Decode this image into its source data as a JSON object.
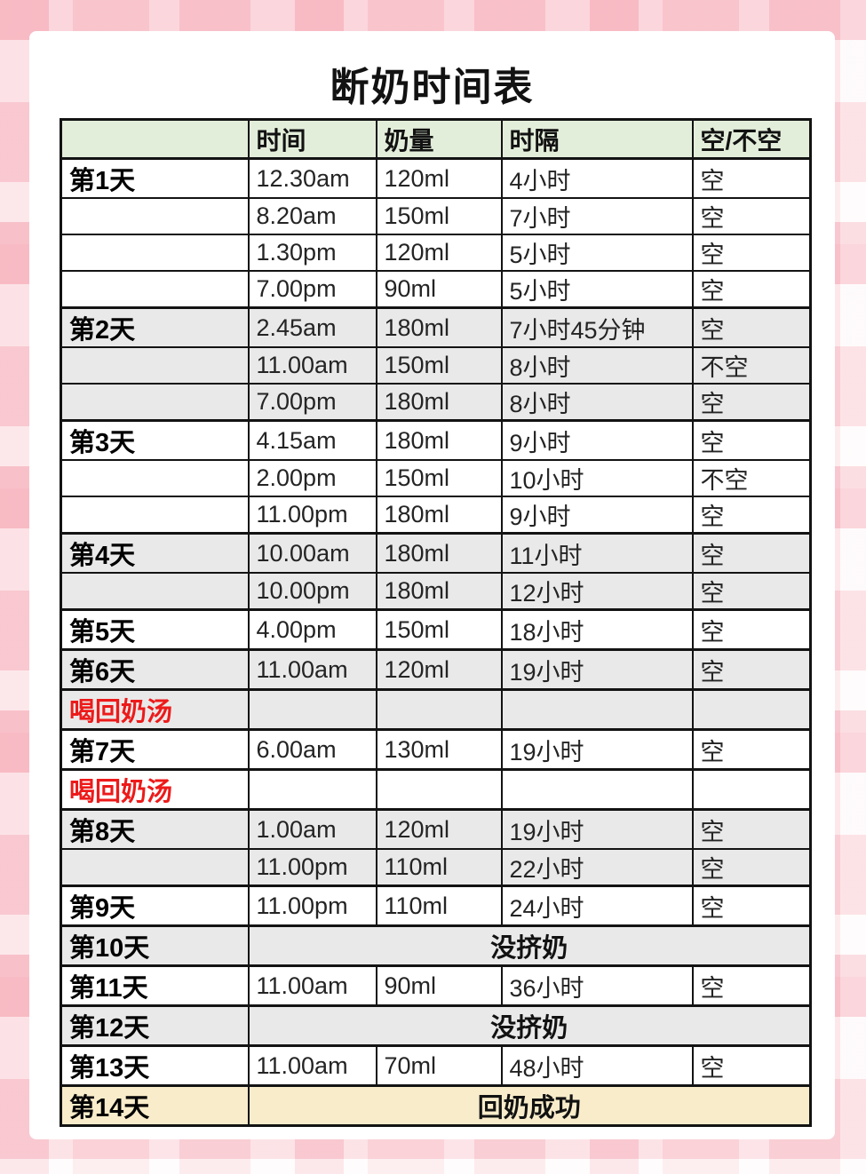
{
  "page_title": "断奶时间表",
  "colors": {
    "header_bg": "#e3eeda",
    "gray_row_bg": "#e9e9e9",
    "yellow_row_bg": "#f9ecca",
    "red_text": "#ed1a1a",
    "border": "#131313",
    "card_bg": "#ffffff",
    "plaid_pink": "#f6a0ad"
  },
  "table": {
    "headers": [
      "",
      "时间",
      "奶量",
      "时隔",
      "空/不空"
    ],
    "rows": [
      {
        "day": "第1天",
        "time": "12.30am",
        "amount": "120ml",
        "interval": "4小时",
        "empty": "空",
        "bg": "white"
      },
      {
        "day": "",
        "time": "8.20am",
        "amount": "150ml",
        "interval": "7小时",
        "empty": "空",
        "bg": "white"
      },
      {
        "day": "",
        "time": "1.30pm",
        "amount": "120ml",
        "interval": "5小时",
        "empty": "空",
        "bg": "white"
      },
      {
        "day": "",
        "time": "7.00pm",
        "amount": "90ml",
        "interval": "5小时",
        "empty": "空",
        "bg": "white"
      },
      {
        "day": "第2天",
        "time": "2.45am",
        "amount": "180ml",
        "interval": "7小时45分钟",
        "empty": "空",
        "bg": "gray"
      },
      {
        "day": "",
        "time": "11.00am",
        "amount": "150ml",
        "interval": "8小时",
        "empty": "不空",
        "bg": "gray"
      },
      {
        "day": "",
        "time": "7.00pm",
        "amount": "180ml",
        "interval": "8小时",
        "empty": "空",
        "bg": "gray"
      },
      {
        "day": "第3天",
        "time": "4.15am",
        "amount": "180ml",
        "interval": "9小时",
        "empty": "空",
        "bg": "white"
      },
      {
        "day": "",
        "time": "2.00pm",
        "amount": "150ml",
        "interval": "10小时",
        "empty": "不空",
        "bg": "white"
      },
      {
        "day": "",
        "time": "11.00pm",
        "amount": "180ml",
        "interval": "9小时",
        "empty": "空",
        "bg": "white"
      },
      {
        "day": "第4天",
        "time": "10.00am",
        "amount": "180ml",
        "interval": "11小时",
        "empty": "空",
        "bg": "gray"
      },
      {
        "day": "",
        "time": "10.00pm",
        "amount": "180ml",
        "interval": "12小时",
        "empty": "空",
        "bg": "gray"
      },
      {
        "day": "第5天",
        "time": "4.00pm",
        "amount": "150ml",
        "interval": "18小时",
        "empty": "空",
        "bg": "white"
      },
      {
        "day": "第6天",
        "time": "11.00am",
        "amount": "120ml",
        "interval": "19小时",
        "empty": "空",
        "bg": "gray"
      },
      {
        "day": "喝回奶汤",
        "red": true,
        "time": "",
        "amount": "",
        "interval": "",
        "empty": "",
        "bg": "gray"
      },
      {
        "day": "第7天",
        "time": "6.00am",
        "amount": "130ml",
        "interval": "19小时",
        "empty": "空",
        "bg": "white"
      },
      {
        "day": "喝回奶汤",
        "red": true,
        "time": "",
        "amount": "",
        "interval": "",
        "empty": "",
        "bg": "white"
      },
      {
        "day": "第8天",
        "time": "1.00am",
        "amount": "120ml",
        "interval": "19小时",
        "empty": "空",
        "bg": "gray"
      },
      {
        "day": "",
        "time": "11.00pm",
        "amount": "110ml",
        "interval": "22小时",
        "empty": "空",
        "bg": "gray"
      },
      {
        "day": "第9天",
        "time": "11.00pm",
        "amount": "110ml",
        "interval": "24小时",
        "empty": "空",
        "bg": "white"
      },
      {
        "day": "第10天",
        "merged": "没挤奶",
        "bg": "gray"
      },
      {
        "day": "第11天",
        "time": "11.00am",
        "amount": "90ml",
        "interval": "36小时",
        "empty": "空",
        "bg": "white"
      },
      {
        "day": "第12天",
        "merged": "没挤奶",
        "bg": "gray"
      },
      {
        "day": "第13天",
        "time": "11.00am",
        "amount": "70ml",
        "interval": "48小时",
        "empty": "空",
        "bg": "white"
      },
      {
        "day": "第14天",
        "merged": "回奶成功",
        "bg": "yellow"
      }
    ]
  }
}
